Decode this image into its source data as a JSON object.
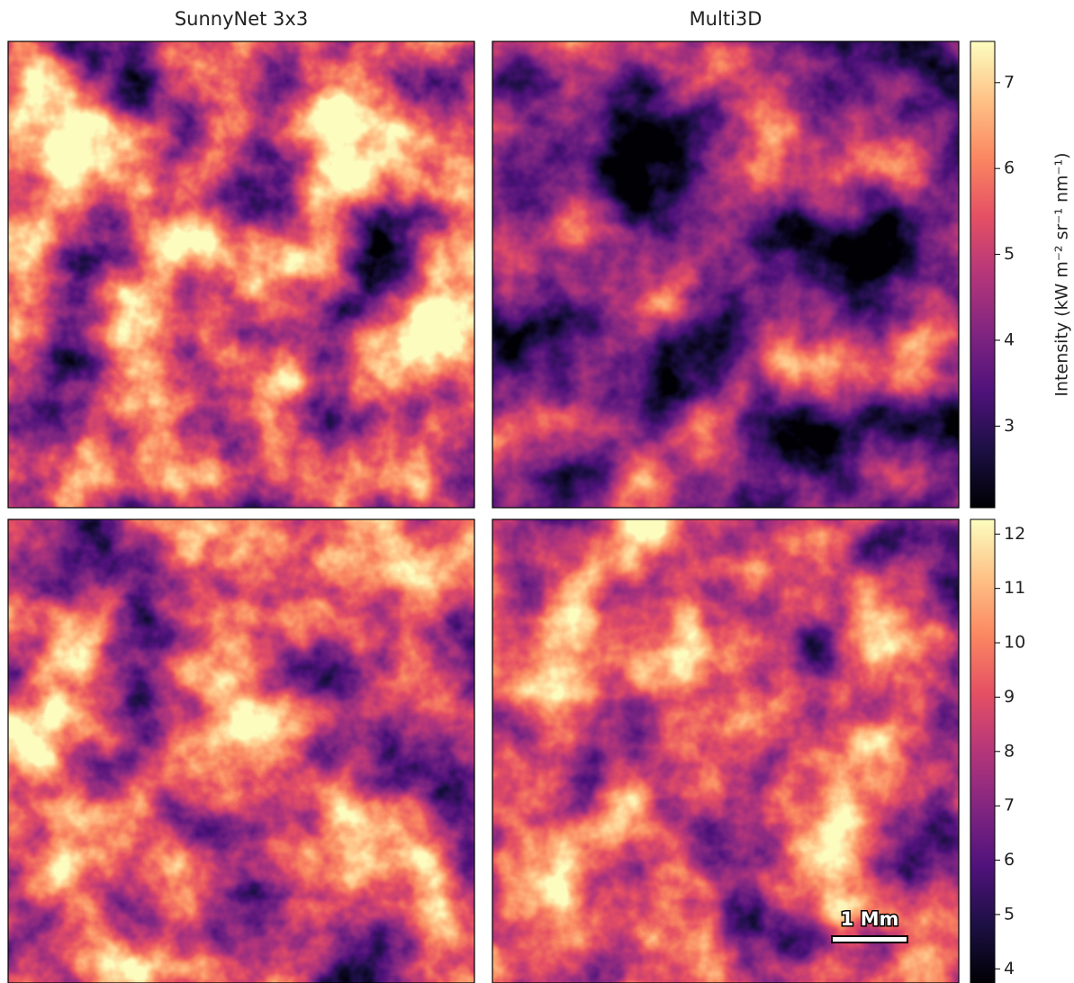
{
  "columns": [
    "SunnyNet 3x3",
    "Multi3D"
  ],
  "colormap": "magma",
  "colorbars": [
    {
      "lim": [
        2.05,
        7.48
      ],
      "ticks": [
        3,
        4,
        5,
        6,
        7
      ],
      "label": "Intensity (kW m⁻² sr⁻¹ nm⁻¹)"
    },
    {
      "lim": [
        3.74,
        12.27
      ],
      "ticks": [
        4,
        5,
        6,
        7,
        8,
        9,
        10,
        11,
        12
      ]
    }
  ],
  "scale_bar": "1 Mm"
}
